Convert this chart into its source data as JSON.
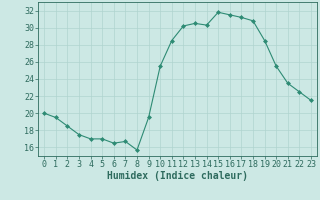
{
  "x": [
    0,
    1,
    2,
    3,
    4,
    5,
    6,
    7,
    8,
    9,
    10,
    11,
    12,
    13,
    14,
    15,
    16,
    17,
    18,
    19,
    20,
    21,
    22,
    23
  ],
  "y": [
    20,
    19.5,
    18.5,
    17.5,
    17,
    17,
    16.5,
    16.7,
    15.7,
    19.5,
    25.5,
    28.5,
    30.2,
    30.5,
    30.3,
    31.8,
    31.5,
    31.2,
    30.8,
    28.5,
    25.5,
    23.5,
    22.5,
    21.5
  ],
  "line_color": "#2e8b74",
  "marker_color": "#2e8b74",
  "bg_color": "#cce8e4",
  "grid_color": "#b0d4cf",
  "xlabel": "Humidex (Indice chaleur)",
  "ylim": [
    15,
    33
  ],
  "xlim": [
    -0.5,
    23.5
  ],
  "yticks": [
    16,
    18,
    20,
    22,
    24,
    26,
    28,
    30,
    32
  ],
  "xticks": [
    0,
    1,
    2,
    3,
    4,
    5,
    6,
    7,
    8,
    9,
    10,
    11,
    12,
    13,
    14,
    15,
    16,
    17,
    18,
    19,
    20,
    21,
    22,
    23
  ],
  "tick_color": "#2e6b5e",
  "label_fontsize": 6.0,
  "xlabel_fontsize": 7.0
}
